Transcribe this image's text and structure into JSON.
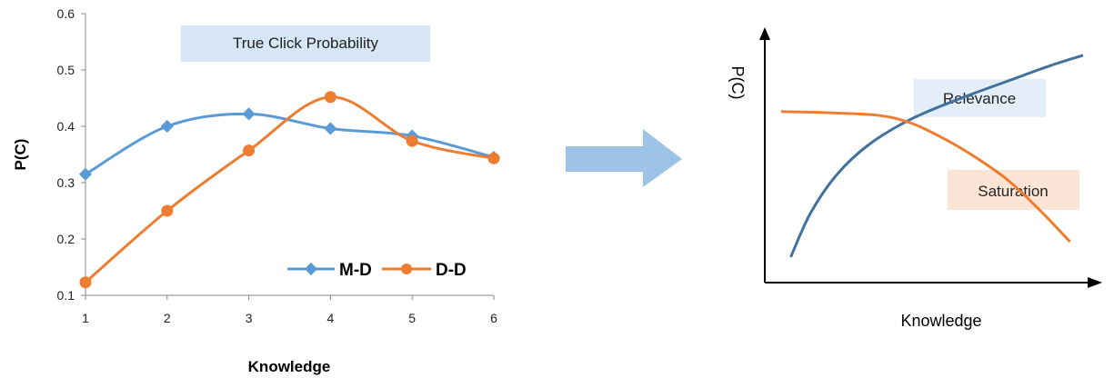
{
  "colors": {
    "md": "#5b9bd5",
    "dd": "#ed7d31",
    "relevance_curve": "#41719c",
    "saturation_curve": "#ed7d31",
    "title_box": "#d6e6f5",
    "relevance_box": "#e3eef8",
    "saturation_box": "#fbe5d6",
    "arrow": "#9dc3e6",
    "axis": "#000000"
  },
  "chart_data": [
    {
      "type": "line",
      "title": "True Click Probability",
      "xlabel": "Knowledge",
      "ylabel": "P(C)",
      "x": [
        1,
        2,
        3,
        4,
        5,
        6
      ],
      "xlim": [
        1,
        6
      ],
      "ylim": [
        0.1,
        0.6
      ],
      "yticks": [
        "0.1",
        "0.2",
        "0.3",
        "0.4",
        "0.5",
        "0.6"
      ],
      "xticks": [
        "1",
        "2",
        "3",
        "4",
        "5",
        "6"
      ],
      "grid": false,
      "legend_position": "bottom-right",
      "series": [
        {
          "name": "M-D",
          "marker": "diamond",
          "values": [
            0.315,
            0.4,
            0.422,
            0.396,
            0.383,
            0.345
          ]
        },
        {
          "name": "D-D",
          "marker": "circle",
          "values": [
            0.123,
            0.25,
            0.357,
            0.452,
            0.374,
            0.343
          ]
        }
      ]
    },
    {
      "type": "line",
      "title": "",
      "xlabel": "Knowledge",
      "ylabel": "P(C)",
      "xlim": [
        0,
        1
      ],
      "ylim": [
        0,
        1
      ],
      "grid": false,
      "series": [
        {
          "name": "Relevance",
          "x": [
            0.08,
            0.14,
            0.22,
            0.32,
            0.45,
            0.6,
            0.75,
            0.88,
            0.98
          ],
          "values": [
            0.1,
            0.27,
            0.42,
            0.54,
            0.64,
            0.72,
            0.79,
            0.85,
            0.89
          ]
        },
        {
          "name": "Saturation",
          "x": [
            0.05,
            0.2,
            0.35,
            0.45,
            0.55,
            0.65,
            0.75,
            0.85,
            0.94
          ],
          "values": [
            0.67,
            0.665,
            0.655,
            0.625,
            0.565,
            0.49,
            0.4,
            0.28,
            0.16
          ]
        }
      ]
    }
  ]
}
